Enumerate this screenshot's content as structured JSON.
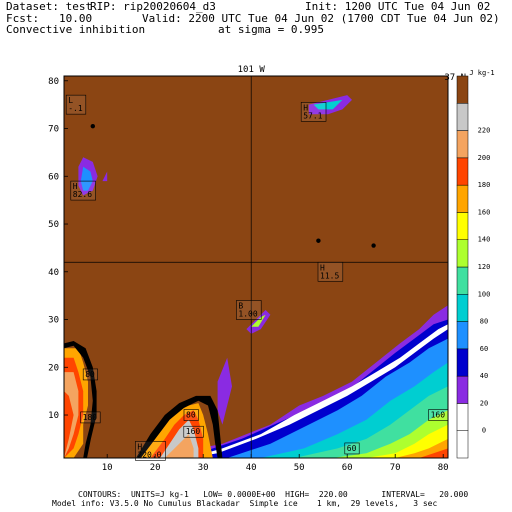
{
  "header": {
    "dataset": "Dataset: test",
    "rip": "RIP: rip20020604_d3",
    "init": "Init: 1200 UTC Tue 04 Jun 02",
    "fcst": "Fcst:   10.00",
    "valid": "Valid: 2200 UTC Tue 04 Jun 02 (1700 CDT Tue 04 Jun 02)",
    "field": "Convective inhibition",
    "level": "at sigma = 0.995"
  },
  "footer": {
    "line1": "CONTOURS:  UNITS=J kg-1   LOW= 0.0000E+00  HIGH=  220.00       INTERVAL=   20.000",
    "line2": "Model info: V3.5.0 No Cumulus Blackadar  Simple ice    1 km,  29 levels,   3 sec"
  },
  "chart_data": {
    "type": "heatmap",
    "field": "Convective inhibition",
    "units": "J kg-1",
    "contour_low": 0,
    "contour_high": 220,
    "contour_interval": 20,
    "xlim": [
      1,
      81
    ],
    "ylim": [
      1,
      81
    ],
    "x_ticks": [
      "10",
      "20",
      "30",
      "40",
      "50",
      "60",
      "70",
      "80"
    ],
    "y_ticks": [
      "10",
      "20",
      "30",
      "40",
      "50",
      "60",
      "70",
      "80"
    ],
    "top_label": "101 W",
    "right_label": "37 N",
    "colorbar_unit": "J kg-1",
    "colorbar": [
      {
        "label": "",
        "color": "#ffffff"
      },
      {
        "label": "0",
        "color": "#ffffff"
      },
      {
        "label": "20",
        "color": "#8a2be2"
      },
      {
        "label": "40",
        "color": "#0000cd"
      },
      {
        "label": "60",
        "color": "#1e90ff"
      },
      {
        "label": "80",
        "color": "#00ced1"
      },
      {
        "label": "100",
        "color": "#40e0a0"
      },
      {
        "label": "120",
        "color": "#adff2f"
      },
      {
        "label": "140",
        "color": "#ffff00"
      },
      {
        "label": "160",
        "color": "#ffa500"
      },
      {
        "label": "180",
        "color": "#ff4500"
      },
      {
        "label": "200",
        "color": "#f4a460"
      },
      {
        "label": "220",
        "color": "#c8c8c8"
      },
      {
        "label": "",
        "color": "#8b4513"
      }
    ],
    "annotations": [
      {
        "mark": "L",
        "value": "-.1",
        "x": 3.5,
        "y": 75
      },
      {
        "mark": "H",
        "value": "57.1",
        "x": 53,
        "y": 73.5
      },
      {
        "mark": "H",
        "value": "82.6",
        "x": 5,
        "y": 57
      },
      {
        "mark": "H",
        "value": "11.5",
        "x": 56.5,
        "y": 40
      },
      {
        "mark": "B",
        "value": "1.00",
        "x": 39.5,
        "y": 32
      },
      {
        "mark": "",
        "value": "80",
        "x": 6.5,
        "y": 18.5
      },
      {
        "mark": "",
        "value": "180",
        "x": 6.5,
        "y": 9.5
      },
      {
        "mark": "",
        "value": "80",
        "x": 27.5,
        "y": 10
      },
      {
        "mark": "",
        "value": "160",
        "x": 28,
        "y": 6.5
      },
      {
        "mark": "H",
        "value": "220.0",
        "x": 19,
        "y": 2.5
      },
      {
        "mark": "",
        "value": "60",
        "x": 61,
        "y": 3
      },
      {
        "mark": "",
        "value": "160",
        "x": 79,
        "y": 10
      }
    ],
    "cross_lines": {
      "x": 40,
      "y": 42
    }
  }
}
